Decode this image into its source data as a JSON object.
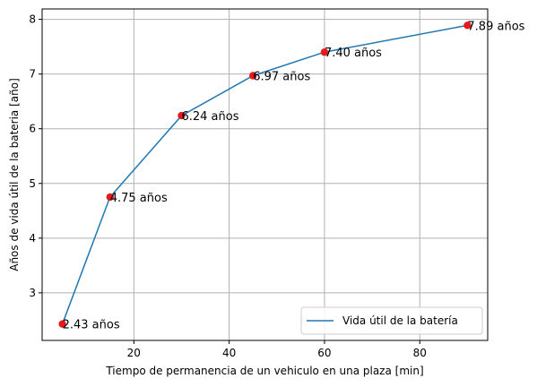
{
  "chart_data": {
    "type": "line",
    "title": "",
    "xlabel": "Tiempo de permanencia de un vehiculo en una plaza [min]",
    "ylabel": "Años de vida útil de la bateria [año]",
    "xlim": [
      0.75,
      94.25
    ],
    "ylim": [
      2.13,
      8.19
    ],
    "xticks": [
      20,
      40,
      60,
      80
    ],
    "yticks": [
      3,
      4,
      5,
      6,
      7,
      8
    ],
    "grid": true,
    "legend_position": "lower-right",
    "series": [
      {
        "name": "Vida útil de la batería",
        "x": [
          5,
          15,
          30,
          45,
          60,
          90
        ],
        "y": [
          2.43,
          4.75,
          6.24,
          6.97,
          7.4,
          7.89
        ],
        "line_color": "#1f77b4",
        "marker_color": "#e41a1c"
      }
    ],
    "annotations": [
      "2.43 años",
      "4.75 años",
      "6.24 años",
      "6.97 años",
      "7.40 años",
      "7.89 años"
    ]
  }
}
